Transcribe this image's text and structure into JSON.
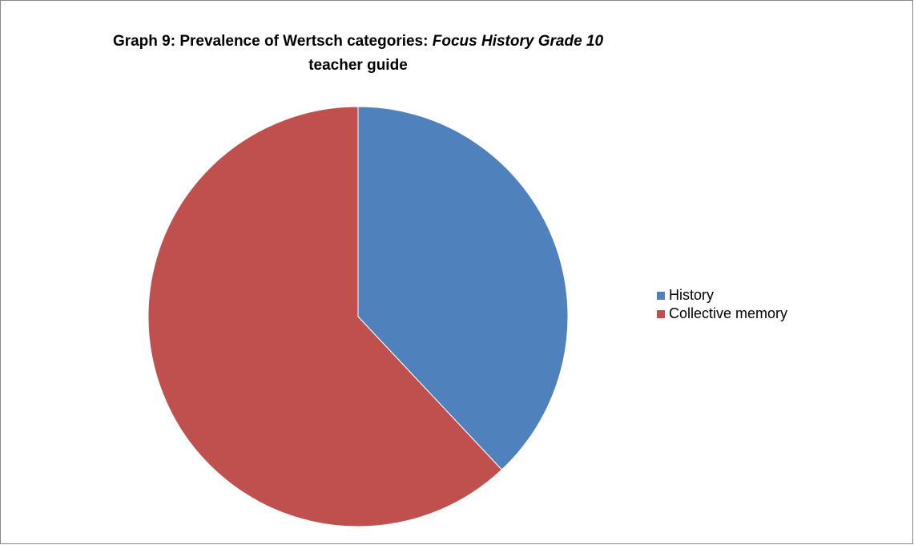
{
  "chart_data": {
    "type": "pie",
    "title": [
      {
        "text": "Graph 9: Prevalence of Wertsch categories:",
        "italic": false
      },
      {
        "text": "Focus History Grade 10",
        "italic": true
      },
      {
        "text": "teacher guide",
        "italic": false
      }
    ],
    "categories": [
      "History",
      "Collective memory"
    ],
    "values": [
      38,
      62
    ],
    "colors": [
      "#4f81bd",
      "#c0504d"
    ],
    "legend": "right"
  }
}
